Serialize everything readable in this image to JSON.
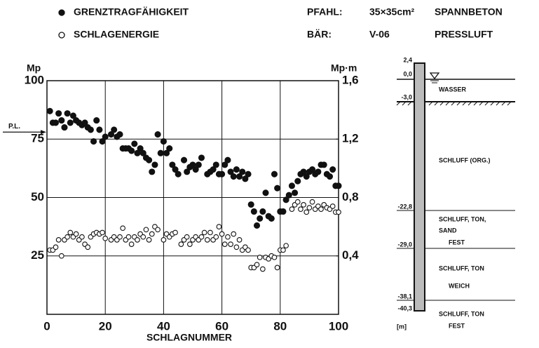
{
  "chart_data": {
    "type": "scatter",
    "x_label": "SCHLAGNUMMER",
    "y_label": "Mp",
    "y2_label": "Mp·m",
    "info": [
      [
        "PFAHL:",
        "35×35cm²",
        "SPANNBETON"
      ],
      [
        "BÄR:",
        "V-06",
        "PRESSLUFT"
      ]
    ],
    "annotation": {
      "text": "P.L.",
      "y": 78
    },
    "xlim": [
      0,
      100
    ],
    "xticks": [
      0,
      20,
      40,
      60,
      80,
      100
    ],
    "ylim": [
      0,
      100
    ],
    "yticks": [
      25,
      50,
      75,
      100
    ],
    "y2lim": [
      0,
      1.6
    ],
    "y2ticks": [
      {
        "value": 0.4,
        "label": "0,4"
      },
      {
        "value": 0.8,
        "label": "0,8"
      },
      {
        "value": 1.2,
        "label": "1,2"
      },
      {
        "value": 1.6,
        "label": "1,6"
      }
    ],
    "grid": true,
    "series": [
      {
        "name": "GRENZTRAGFÄHIGKEIT",
        "color": "#111111",
        "marker": "filled",
        "x": [
          1,
          2,
          3,
          4,
          5,
          6,
          7,
          8,
          9,
          10,
          11,
          12,
          13,
          14,
          15,
          16,
          17,
          18,
          19,
          20,
          22,
          23,
          24,
          25,
          26,
          27,
          28,
          29,
          30,
          31,
          32,
          33,
          34,
          35,
          36,
          37,
          38,
          39,
          40,
          41,
          42,
          43,
          44,
          45,
          47,
          48,
          49,
          50,
          51,
          52,
          53,
          55,
          56,
          57,
          58,
          59,
          60,
          61,
          62,
          63,
          64,
          65,
          66,
          67,
          68,
          69,
          70,
          71,
          72,
          73,
          74,
          75,
          76,
          77,
          78,
          79,
          80,
          81,
          82,
          83,
          84,
          85,
          86,
          87,
          88,
          89,
          90,
          91,
          92,
          93,
          94,
          95,
          96,
          97,
          98,
          99,
          100
        ],
        "values": [
          87,
          82,
          82,
          86,
          83,
          80,
          86,
          82,
          85,
          83,
          82,
          81,
          82,
          80,
          79,
          74,
          83,
          79,
          74,
          76,
          77,
          79,
          76,
          77,
          71,
          71,
          71,
          70,
          73,
          69,
          71,
          69,
          67,
          66,
          61,
          64,
          77,
          69,
          74,
          69,
          71,
          64,
          62,
          60,
          66,
          61,
          63,
          64,
          62,
          64,
          67,
          60,
          61,
          62,
          64,
          60,
          60,
          64,
          66,
          61,
          59,
          62,
          59,
          61,
          58,
          60,
          47,
          44,
          38,
          41,
          44,
          52,
          42,
          41,
          60,
          54,
          44,
          44,
          49,
          51,
          55,
          52,
          57,
          60,
          61,
          59,
          61,
          62,
          60,
          61,
          64,
          64,
          60,
          59,
          62,
          55,
          55
        ]
      },
      {
        "name": "SCHLAGENERGIE",
        "color": "#111111",
        "marker": "open",
        "axis": "y2",
        "x": [
          1,
          2,
          3,
          4,
          5,
          6,
          7,
          8,
          9,
          10,
          11,
          12,
          13,
          14,
          15,
          16,
          17,
          18,
          19,
          20,
          22,
          23,
          24,
          25,
          26,
          27,
          28,
          29,
          30,
          31,
          32,
          33,
          34,
          35,
          36,
          37,
          38,
          40,
          41,
          42,
          43,
          44,
          46,
          47,
          48,
          49,
          50,
          51,
          52,
          53,
          54,
          55,
          56,
          57,
          58,
          59,
          60,
          61,
          62,
          63,
          64,
          65,
          66,
          67,
          68,
          69,
          70,
          71,
          72,
          73,
          74,
          75,
          76,
          77,
          78,
          79,
          80,
          81,
          82,
          84,
          85,
          86,
          87,
          88,
          89,
          90,
          91,
          92,
          93,
          94,
          95,
          96,
          97,
          98,
          99,
          100
        ],
        "values": [
          0.44,
          0.44,
          0.46,
          0.51,
          0.4,
          0.51,
          0.53,
          0.56,
          0.53,
          0.55,
          0.51,
          0.53,
          0.48,
          0.46,
          0.53,
          0.55,
          0.56,
          0.55,
          0.56,
          0.52,
          0.51,
          0.53,
          0.51,
          0.53,
          0.59,
          0.51,
          0.53,
          0.48,
          0.53,
          0.51,
          0.55,
          0.53,
          0.58,
          0.51,
          0.55,
          0.6,
          0.58,
          0.51,
          0.55,
          0.53,
          0.55,
          0.56,
          0.48,
          0.51,
          0.53,
          0.48,
          0.51,
          0.53,
          0.51,
          0.53,
          0.56,
          0.51,
          0.56,
          0.51,
          0.53,
          0.6,
          0.55,
          0.48,
          0.53,
          0.48,
          0.55,
          0.46,
          0.51,
          0.44,
          0.46,
          0.44,
          0.32,
          0.32,
          0.34,
          0.39,
          0.31,
          0.39,
          0.38,
          0.4,
          0.39,
          0.32,
          0.44,
          0.44,
          0.47,
          0.72,
          0.75,
          0.77,
          0.72,
          0.75,
          0.7,
          0.73,
          0.77,
          0.72,
          0.74,
          0.72,
          0.75,
          0.73,
          0.72,
          0.74,
          0.7,
          0.7
        ]
      }
    ]
  },
  "profile": {
    "depths": [
      "2,4",
      "0,0",
      "-3,0",
      "-22,8",
      "-29,0",
      "-38,1",
      "-40,3"
    ],
    "unit": "[m]",
    "layers": [
      [
        "WASSER"
      ],
      [
        "SCHLUFF (ORG.)"
      ],
      [
        "SCHLUFF, TON,",
        "SAND",
        "FEST"
      ],
      [
        "SCHLUFF, TON",
        "WEICH"
      ],
      [
        "SCHLUFF, TON",
        "FEST"
      ]
    ]
  }
}
